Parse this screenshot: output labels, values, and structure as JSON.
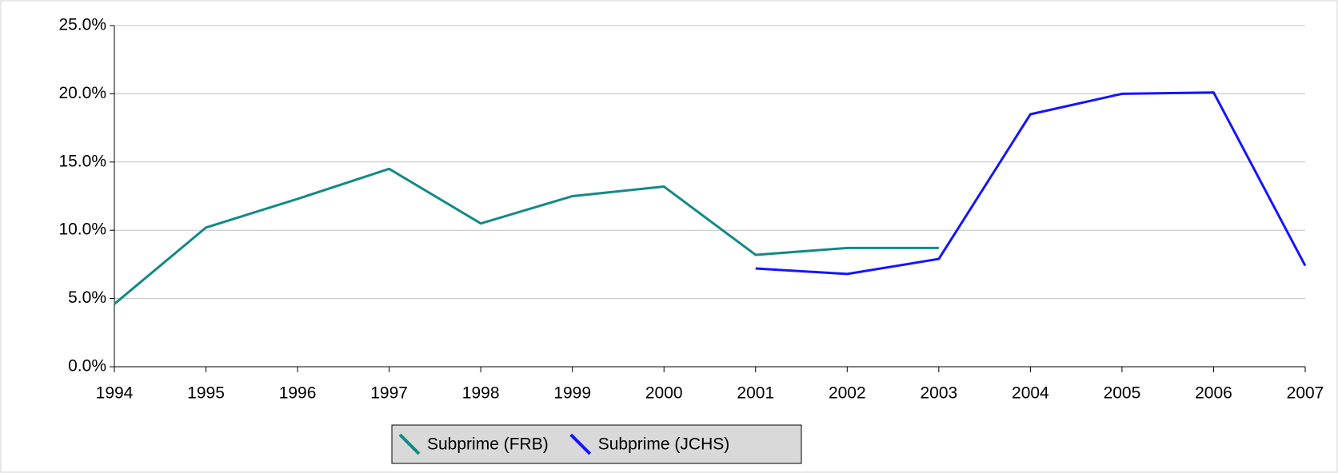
{
  "chart_data": {
    "type": "line",
    "x": [
      1994,
      1995,
      1996,
      1997,
      1998,
      1999,
      2000,
      2001,
      2002,
      2003,
      2004,
      2005,
      2006,
      2007
    ],
    "series": [
      {
        "name": "Subprime (FRB)",
        "color": "#138a86",
        "values": [
          4.6,
          10.2,
          12.3,
          14.5,
          10.5,
          12.5,
          13.2,
          8.2,
          8.7,
          8.7,
          null,
          null,
          null,
          null
        ]
      },
      {
        "name": "Subprime (JCHS)",
        "color": "#1414ff",
        "values": [
          null,
          null,
          null,
          null,
          null,
          null,
          null,
          7.2,
          6.8,
          7.9,
          18.5,
          20.0,
          20.1,
          7.4
        ]
      }
    ],
    "xlim": [
      1994,
      2007
    ],
    "xticks": [
      1994,
      1995,
      1996,
      1997,
      1998,
      1999,
      2000,
      2001,
      2002,
      2003,
      2004,
      2005,
      2006,
      2007
    ],
    "ylim": [
      0,
      25
    ],
    "yticks": [
      {
        "value": 0,
        "label": "0.0%"
      },
      {
        "value": 5,
        "label": "5.0%"
      },
      {
        "value": 10,
        "label": "10.0%"
      },
      {
        "value": 15,
        "label": "15.0%"
      },
      {
        "value": 20,
        "label": "20.0%"
      },
      {
        "value": 25,
        "label": "25.0%"
      }
    ],
    "grid": true,
    "legend": "bottom"
  }
}
